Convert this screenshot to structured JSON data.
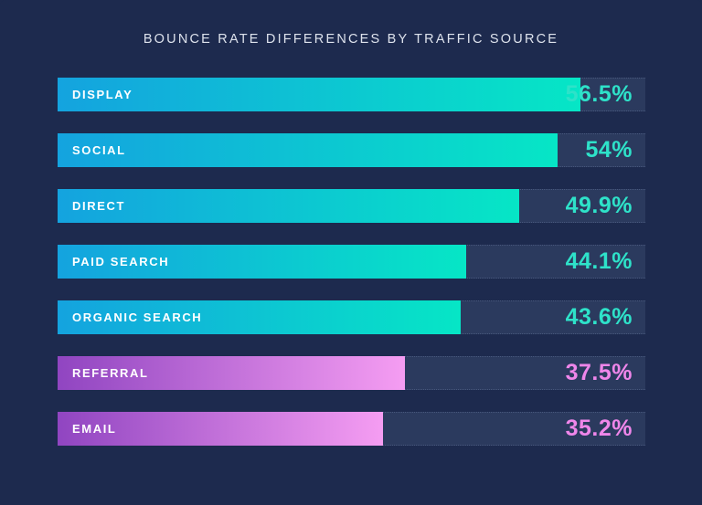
{
  "page": {
    "background_color": "#1d2a4e",
    "track_color": "#2b3a5e"
  },
  "chart_data": {
    "type": "bar",
    "orientation": "horizontal",
    "title": "BOUNCE RATE DIFFERENCES BY TRAFFIC SOURCE",
    "xlabel": "",
    "ylabel": "",
    "categories": [
      "DISPLAY",
      "SOCIAL",
      "DIRECT",
      "PAID SEARCH",
      "ORGANIC SEARCH",
      "REFERRAL",
      "EMAIL"
    ],
    "values": [
      56.5,
      54,
      49.9,
      44.1,
      43.6,
      37.5,
      35.2
    ],
    "value_labels": [
      "56.5%",
      "54%",
      "49.9%",
      "44.1%",
      "43.6%",
      "37.5%",
      "35.2%"
    ],
    "series_palette": [
      "teal",
      "teal",
      "teal",
      "teal",
      "teal",
      "purple",
      "purple"
    ],
    "xlim": [
      0,
      63.5
    ],
    "grid": false,
    "legend": false
  },
  "styles": {
    "teal": {
      "gradient_start": "#14a3df",
      "gradient_end": "#06e6c6",
      "value_text_color": "#2ee2c9"
    },
    "purple": {
      "gradient_start": "#9045c1",
      "gradient_end": "#f59df2",
      "value_text_color": "#ef86ea"
    }
  }
}
